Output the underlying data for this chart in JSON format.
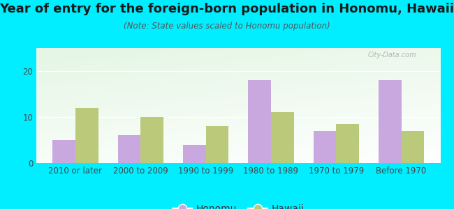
{
  "title": "Year of entry for the foreign-born population in Honomu, Hawaii",
  "subtitle": "(Note: State values scaled to Honomu population)",
  "categories": [
    "2010 or later",
    "2000 to 2009",
    "1990 to 1999",
    "1980 to 1989",
    "1970 to 1979",
    "Before 1970"
  ],
  "honomu_values": [
    5,
    6,
    4,
    18,
    7,
    18
  ],
  "hawaii_values": [
    12,
    10,
    8,
    11,
    8.5,
    7
  ],
  "honomu_color": "#c9a8e0",
  "hawaii_color": "#bbc97a",
  "background_outer": "#00eeff",
  "ylim": [
    0,
    25
  ],
  "yticks": [
    0,
    10,
    20
  ],
  "bar_width": 0.35,
  "legend_labels": [
    "Honomu",
    "Hawaii"
  ],
  "title_fontsize": 13,
  "subtitle_fontsize": 8.5,
  "tick_fontsize": 8.5
}
